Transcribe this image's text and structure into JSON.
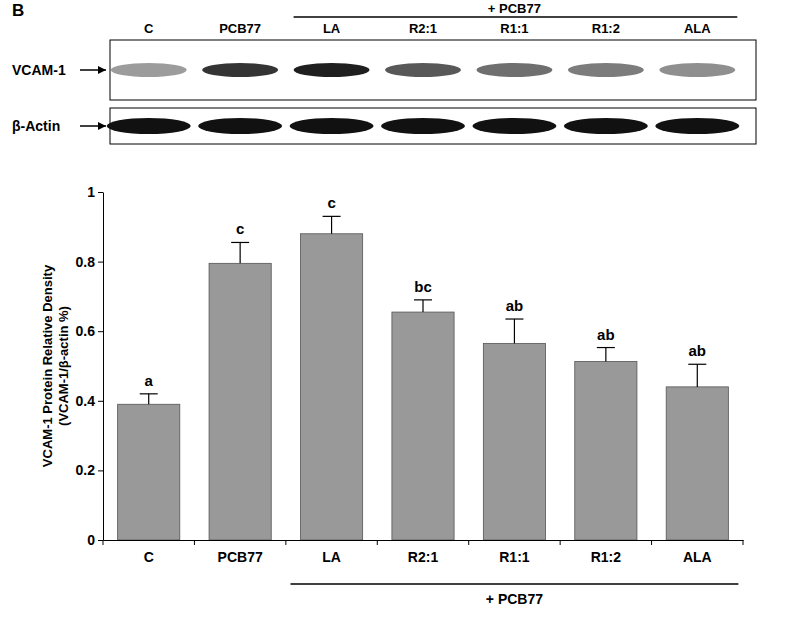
{
  "chart_data": {
    "type": "bar",
    "panel_label": "B",
    "categories": [
      "C",
      "PCB77",
      "LA",
      "R2:1",
      "R1:1",
      "R1:2",
      "ALA"
    ],
    "values": [
      0.39,
      0.795,
      0.88,
      0.655,
      0.565,
      0.513,
      0.44
    ],
    "errors": [
      0.03,
      0.06,
      0.05,
      0.035,
      0.07,
      0.04,
      0.065
    ],
    "annotations": [
      "a",
      "c",
      "c",
      "bc",
      "ab",
      "ab",
      "ab"
    ],
    "group_label": "+ PCB77",
    "blot_rows": [
      "VCAM-1",
      "β-Actin"
    ],
    "ylabel": [
      "VCAM-1 Protein Relative Density",
      "(VCAM-1/β-actin %)"
    ],
    "ylim": [
      0,
      1
    ],
    "yticks": [
      0,
      0.2,
      0.4,
      0.6,
      0.8,
      1
    ],
    "color": "#999999",
    "grid": false
  }
}
